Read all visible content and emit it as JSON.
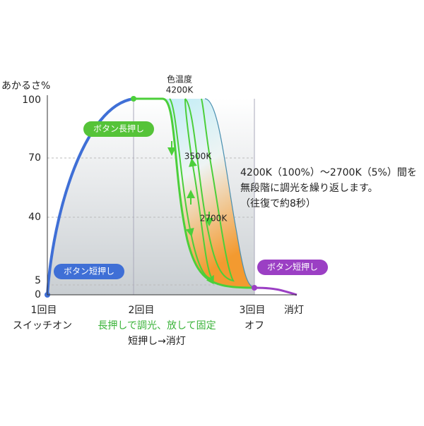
{
  "y_axis": {
    "title": "あかるさ%",
    "ticks": [
      "100",
      "70",
      "40",
      "5",
      "0"
    ]
  },
  "x_axis": {
    "steps": [
      "1回目",
      "2回目",
      "3回目",
      "消灯"
    ],
    "captions": [
      "スイッチオン",
      "長押しで調光、放して固定",
      "短押し→消灯",
      "オフ"
    ]
  },
  "callouts": [
    "ボタン長押し",
    "ボタン短押し",
    "ボタン短押し"
  ],
  "color_temperature": {
    "title": "色温度",
    "labels": [
      "4200K",
      "3500K",
      "2700K"
    ]
  },
  "note": [
    "4200K（100%）～2700K（5%）間を",
    "無段階に調光を繰り返します。",
    "（往復で約8秒）"
  ]
}
